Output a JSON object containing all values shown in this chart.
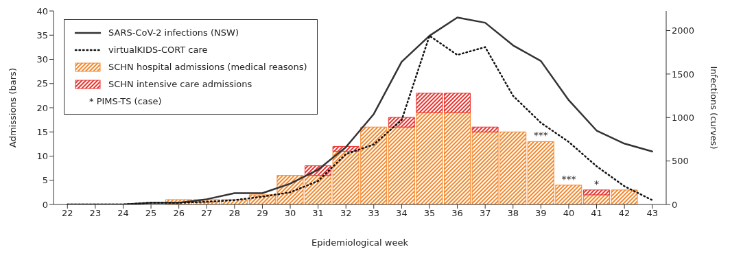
{
  "chart_data": {
    "type": "bar",
    "stacked": true,
    "xlabel": "Epidemiological week",
    "ylabel": "Admissions (bars)",
    "y2label": "Infections (curves)",
    "categories": [
      "22",
      "23",
      "24",
      "25",
      "26",
      "27",
      "28",
      "29",
      "30",
      "31",
      "32",
      "33",
      "34",
      "35",
      "36",
      "37",
      "38",
      "39",
      "40",
      "41",
      "42",
      "43"
    ],
    "series": [
      {
        "name": "SARS-CoV-2 infections (NSW)",
        "type": "line",
        "axis": "y2",
        "color": "#333333",
        "line_style": "solid",
        "values": [
          0,
          0,
          0,
          20,
          20,
          60,
          130,
          130,
          240,
          400,
          660,
          1040,
          1640,
          1940,
          2150,
          2090,
          1830,
          1650,
          1200,
          850,
          700,
          610
        ]
      },
      {
        "name": "virtualKIDS-CORT care",
        "type": "line",
        "axis": "y2",
        "color": "#111111",
        "line_style": "dotted",
        "values": [
          0,
          0,
          0,
          20,
          20,
          30,
          50,
          90,
          140,
          270,
          580,
          690,
          970,
          1940,
          1720,
          1810,
          1250,
          940,
          720,
          440,
          210,
          50
        ]
      },
      {
        "name": "SCHN hospital admissions (medical reasons)",
        "color": "#f4872a",
        "values": [
          0,
          0,
          0,
          0,
          1,
          1,
          1,
          2,
          6,
          6,
          11,
          16,
          16,
          19,
          19,
          15,
          15,
          13,
          4,
          2,
          3,
          null
        ]
      },
      {
        "name": "SCHN intensive care admissions",
        "color": "#e8322d",
        "values": [
          0,
          0,
          0,
          0,
          0,
          0,
          0,
          0,
          0,
          2,
          1,
          0,
          2,
          4,
          4,
          1,
          0,
          0,
          0,
          1,
          0,
          null
        ]
      }
    ],
    "ylim": [
      0,
      40
    ],
    "yticks": [
      0,
      5,
      10,
      15,
      20,
      25,
      30,
      35,
      40
    ],
    "y2lim": [
      0,
      2225
    ],
    "y2ticks": [
      0,
      500,
      1000,
      1500,
      2000
    ],
    "grid": false,
    "legend": "top left",
    "marker": "none",
    "annotations": [
      "* PIMS-TS (case)",
      {
        "text": "***",
        "x": "39",
        "y": 13
      },
      {
        "text": "***",
        "x": "40",
        "y": 4
      },
      {
        "text": "*",
        "x": "41",
        "y": 3
      }
    ]
  }
}
